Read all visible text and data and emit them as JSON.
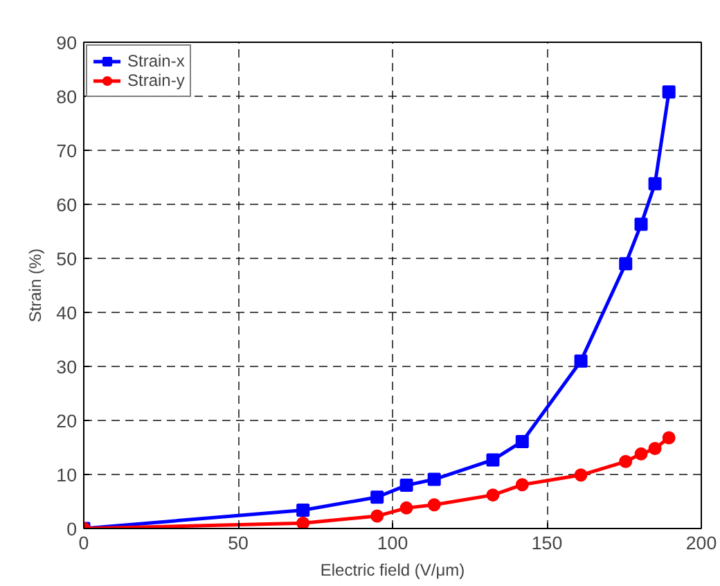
{
  "chart_data": {
    "type": "line",
    "xlabel": "Electric field (V/μm)",
    "ylabel": "Strain (%)",
    "x": [
      0,
      71,
      95,
      104.5,
      113.5,
      132.5,
      142,
      161,
      175.5,
      180.5,
      185,
      189.5
    ],
    "series": [
      {
        "name": "Strain-x",
        "color": "#0000ff",
        "marker": "square",
        "values": [
          0,
          3.4,
          5.8,
          8,
          9.1,
          12.7,
          16.1,
          31,
          49,
          56.3,
          63.8,
          80.8
        ]
      },
      {
        "name": "Strain-y",
        "color": "#ff0000",
        "marker": "circle",
        "values": [
          0,
          1,
          2.3,
          3.8,
          4.4,
          6.2,
          8.1,
          9.9,
          12.4,
          13.8,
          14.8,
          16.8
        ]
      }
    ],
    "xlim": [
      0,
      200
    ],
    "xticks": [
      0,
      50,
      100,
      150,
      200
    ],
    "ylim": [
      0,
      90
    ],
    "yticks": [
      0,
      10,
      20,
      30,
      40,
      50,
      60,
      70,
      80,
      90
    ],
    "grid": true,
    "legend": "top left",
    "line_style": "solid"
  }
}
